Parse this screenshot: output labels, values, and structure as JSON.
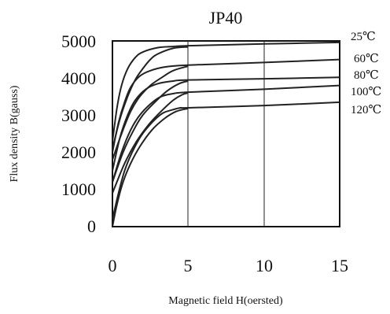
{
  "chart_data": {
    "type": "line",
    "title": "JP40",
    "xlabel": "Magnetic field H(oersted)",
    "ylabel": "Flux density B(gauss)",
    "xlim": [
      0,
      15
    ],
    "ylim": [
      0,
      5000
    ],
    "x_ticks": [
      "0",
      "5",
      "10",
      "15"
    ],
    "y_ticks": [
      "0",
      "1000",
      "2000",
      "3000",
      "4000",
      "5000"
    ],
    "grid": "vertical at x=5 and x=10",
    "line_color": "#222222",
    "series": [
      {
        "name": "25℃",
        "upper": [
          [
            0,
            2300
          ],
          [
            0.3,
            3200
          ],
          [
            0.6,
            3800
          ],
          [
            1.0,
            4250
          ],
          [
            1.5,
            4550
          ],
          [
            2.0,
            4700
          ],
          [
            3.0,
            4820
          ],
          [
            4.0,
            4850
          ],
          [
            5.0,
            4870
          ],
          [
            10,
            4920
          ],
          [
            15,
            4960
          ]
        ],
        "lower": [
          [
            0,
            2100
          ],
          [
            0.5,
            2900
          ],
          [
            1.0,
            3500
          ],
          [
            1.5,
            3950
          ],
          [
            2.0,
            4250
          ],
          [
            2.5,
            4500
          ],
          [
            3.0,
            4650
          ],
          [
            4.0,
            4800
          ],
          [
            5.0,
            4840
          ]
        ]
      },
      {
        "name": "60℃",
        "upper": [
          [
            0,
            2000
          ],
          [
            0.4,
            2800
          ],
          [
            0.8,
            3350
          ],
          [
            1.2,
            3750
          ],
          [
            1.8,
            4050
          ],
          [
            2.5,
            4200
          ],
          [
            3.5,
            4300
          ],
          [
            5.0,
            4350
          ],
          [
            10,
            4420
          ],
          [
            15,
            4500
          ]
        ],
        "lower": [
          [
            0,
            1800
          ],
          [
            0.6,
            2500
          ],
          [
            1.2,
            3100
          ],
          [
            1.8,
            3500
          ],
          [
            2.5,
            3800
          ],
          [
            3.2,
            4000
          ],
          [
            4.0,
            4200
          ],
          [
            5.0,
            4320
          ]
        ]
      },
      {
        "name": "80℃",
        "upper": [
          [
            0,
            1500
          ],
          [
            0.5,
            2400
          ],
          [
            1.0,
            3000
          ],
          [
            1.5,
            3400
          ],
          [
            2.2,
            3700
          ],
          [
            3.0,
            3850
          ],
          [
            4.0,
            3920
          ],
          [
            5.0,
            3950
          ],
          [
            10,
            3980
          ],
          [
            15,
            4020
          ]
        ],
        "lower": [
          [
            0,
            1200
          ],
          [
            0.7,
            2000
          ],
          [
            1.4,
            2600
          ],
          [
            2.0,
            3000
          ],
          [
            2.8,
            3350
          ],
          [
            3.6,
            3650
          ],
          [
            4.4,
            3850
          ],
          [
            5.0,
            3920
          ]
        ]
      },
      {
        "name": "100℃",
        "upper": [
          [
            0,
            1200
          ],
          [
            0.6,
            2000
          ],
          [
            1.2,
            2600
          ],
          [
            1.8,
            3000
          ],
          [
            2.5,
            3300
          ],
          [
            3.2,
            3500
          ],
          [
            4.0,
            3580
          ],
          [
            5.0,
            3620
          ],
          [
            10,
            3700
          ],
          [
            15,
            3800
          ]
        ],
        "lower": [
          [
            0,
            900
          ],
          [
            0.8,
            1700
          ],
          [
            1.6,
            2300
          ],
          [
            2.4,
            2750
          ],
          [
            3.2,
            3100
          ],
          [
            4.0,
            3400
          ],
          [
            4.6,
            3550
          ],
          [
            5.0,
            3600
          ]
        ]
      },
      {
        "name": "120℃",
        "upper": [
          [
            0,
            200
          ],
          [
            0.4,
            900
          ],
          [
            0.8,
            1500
          ],
          [
            1.3,
            2000
          ],
          [
            1.9,
            2450
          ],
          [
            2.6,
            2800
          ],
          [
            3.3,
            3050
          ],
          [
            4.0,
            3150
          ],
          [
            4.5,
            3200
          ],
          [
            5.0,
            3200
          ],
          [
            10,
            3260
          ],
          [
            15,
            3350
          ]
        ],
        "lower": [
          [
            0,
            0
          ],
          [
            0.3,
            600
          ],
          [
            0.7,
            1200
          ],
          [
            1.2,
            1700
          ],
          [
            1.8,
            2150
          ],
          [
            2.6,
            2600
          ],
          [
            3.4,
            2900
          ],
          [
            4.2,
            3100
          ],
          [
            5.0,
            3180
          ]
        ]
      }
    ]
  }
}
